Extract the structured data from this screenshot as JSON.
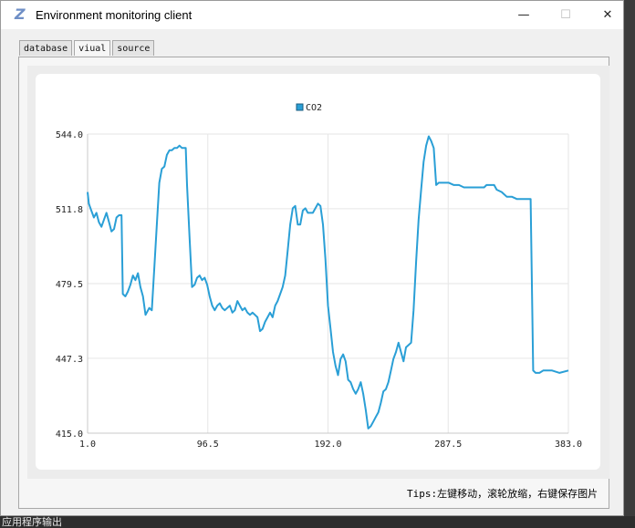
{
  "window": {
    "title": "Environment monitoring client",
    "minimize_symbol": "—",
    "maximize_symbol": "☐",
    "close_symbol": "✕"
  },
  "tabs": [
    {
      "label": "database",
      "active": false
    },
    {
      "label": "viual",
      "active": true
    },
    {
      "label": "source",
      "active": false
    }
  ],
  "tips": "Tips:左键移动，滚轮放缩，右键保存图片",
  "taskbar": {
    "label": "应用程序输出"
  },
  "colors": {
    "series": "#2a9fd6",
    "grid": "#e6e6e6",
    "axis": "#c8c8c8"
  },
  "chart_data": {
    "type": "line",
    "legend": [
      "CO2"
    ],
    "legend_position": "top-center",
    "grid": true,
    "xlim": [
      1.0,
      383.0
    ],
    "ylim": [
      415.0,
      544.0
    ],
    "x_ticks": [
      "1.0",
      "96.5",
      "192.0",
      "287.5",
      "383.0"
    ],
    "y_ticks": [
      "544.0",
      "511.8",
      "479.5",
      "447.3",
      "415.0"
    ],
    "series": [
      {
        "name": "CO2",
        "points": [
          [
            1,
            519
          ],
          [
            2,
            514
          ],
          [
            4,
            511
          ],
          [
            6,
            508
          ],
          [
            8,
            510
          ],
          [
            10,
            506
          ],
          [
            12,
            504
          ],
          [
            14,
            507
          ],
          [
            16,
            510
          ],
          [
            18,
            506
          ],
          [
            20,
            502
          ],
          [
            22,
            503
          ],
          [
            24,
            508
          ],
          [
            26,
            509
          ],
          [
            28,
            509
          ],
          [
            29,
            475
          ],
          [
            31,
            474
          ],
          [
            33,
            476
          ],
          [
            35,
            479
          ],
          [
            37,
            483
          ],
          [
            39,
            481
          ],
          [
            41,
            484
          ],
          [
            43,
            478
          ],
          [
            45,
            474
          ],
          [
            47,
            466
          ],
          [
            50,
            469
          ],
          [
            52,
            468
          ],
          [
            54,
            486
          ],
          [
            56,
            505
          ],
          [
            58,
            523
          ],
          [
            60,
            529
          ],
          [
            62,
            530
          ],
          [
            64,
            535
          ],
          [
            66,
            537
          ],
          [
            68,
            537
          ],
          [
            70,
            538
          ],
          [
            72,
            538
          ],
          [
            74,
            539
          ],
          [
            76,
            538
          ],
          [
            79,
            538
          ],
          [
            80,
            522
          ],
          [
            82,
            500
          ],
          [
            84,
            478
          ],
          [
            86,
            479
          ],
          [
            88,
            482
          ],
          [
            90,
            483
          ],
          [
            92,
            481
          ],
          [
            94,
            482
          ],
          [
            96,
            479
          ],
          [
            98,
            474
          ],
          [
            100,
            470
          ],
          [
            102,
            468
          ],
          [
            104,
            470
          ],
          [
            106,
            471
          ],
          [
            108,
            469
          ],
          [
            110,
            468
          ],
          [
            112,
            469
          ],
          [
            114,
            470
          ],
          [
            116,
            467
          ],
          [
            118,
            468
          ],
          [
            120,
            472
          ],
          [
            122,
            470
          ],
          [
            124,
            468
          ],
          [
            126,
            469
          ],
          [
            128,
            467
          ],
          [
            130,
            466
          ],
          [
            132,
            467
          ],
          [
            134,
            466
          ],
          [
            136,
            465
          ],
          [
            138,
            459
          ],
          [
            140,
            460
          ],
          [
            142,
            463
          ],
          [
            144,
            465
          ],
          [
            146,
            467
          ],
          [
            148,
            465
          ],
          [
            150,
            470
          ],
          [
            152,
            472
          ],
          [
            154,
            475
          ],
          [
            156,
            478
          ],
          [
            158,
            483
          ],
          [
            160,
            494
          ],
          [
            162,
            505
          ],
          [
            164,
            512
          ],
          [
            166,
            513
          ],
          [
            168,
            505
          ],
          [
            170,
            505
          ],
          [
            172,
            511
          ],
          [
            174,
            512
          ],
          [
            176,
            510
          ],
          [
            178,
            510
          ],
          [
            180,
            510
          ],
          [
            182,
            512
          ],
          [
            184,
            514
          ],
          [
            186,
            513
          ],
          [
            188,
            505
          ],
          [
            190,
            490
          ],
          [
            192,
            470
          ],
          [
            194,
            460
          ],
          [
            196,
            450
          ],
          [
            198,
            444
          ],
          [
            200,
            440
          ],
          [
            202,
            447
          ],
          [
            204,
            449
          ],
          [
            206,
            446
          ],
          [
            208,
            438
          ],
          [
            210,
            437
          ],
          [
            212,
            434
          ],
          [
            214,
            432
          ],
          [
            216,
            434
          ],
          [
            218,
            437
          ],
          [
            220,
            432
          ],
          [
            222,
            425
          ],
          [
            224,
            417
          ],
          [
            226,
            418
          ],
          [
            228,
            420
          ],
          [
            230,
            422
          ],
          [
            232,
            424
          ],
          [
            234,
            428
          ],
          [
            236,
            433
          ],
          [
            238,
            434
          ],
          [
            240,
            437
          ],
          [
            242,
            442
          ],
          [
            244,
            447
          ],
          [
            246,
            450
          ],
          [
            248,
            454
          ],
          [
            250,
            450
          ],
          [
            252,
            446
          ],
          [
            254,
            452
          ],
          [
            256,
            453
          ],
          [
            258,
            454
          ],
          [
            260,
            468
          ],
          [
            262,
            489
          ],
          [
            264,
            507
          ],
          [
            266,
            520
          ],
          [
            268,
            532
          ],
          [
            270,
            539
          ],
          [
            272,
            543
          ],
          [
            274,
            541
          ],
          [
            276,
            538
          ],
          [
            278,
            522
          ],
          [
            280,
            523
          ],
          [
            284,
            523
          ],
          [
            288,
            523
          ],
          [
            292,
            522
          ],
          [
            296,
            522
          ],
          [
            300,
            521
          ],
          [
            304,
            521
          ],
          [
            308,
            521
          ],
          [
            312,
            521
          ],
          [
            316,
            521
          ],
          [
            318,
            522
          ],
          [
            322,
            522
          ],
          [
            324,
            522
          ],
          [
            326,
            520
          ],
          [
            330,
            519
          ],
          [
            332,
            518
          ],
          [
            334,
            517
          ],
          [
            338,
            517
          ],
          [
            342,
            516
          ],
          [
            346,
            516
          ],
          [
            350,
            516
          ],
          [
            353,
            516
          ],
          [
            355,
            442
          ],
          [
            357,
            441
          ],
          [
            360,
            441
          ],
          [
            363,
            442
          ],
          [
            365,
            442
          ],
          [
            370,
            442
          ],
          [
            376,
            441
          ],
          [
            383,
            442
          ]
        ]
      }
    ]
  }
}
